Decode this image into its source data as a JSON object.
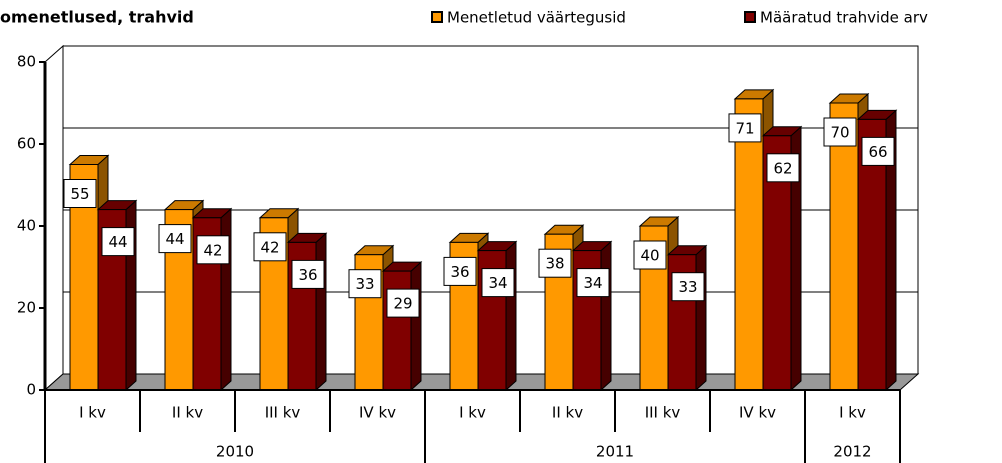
{
  "chart_data": {
    "type": "bar3d",
    "title": "omenetlused, trahvid",
    "groups": [
      {
        "label": "2010",
        "categories": [
          "I kv",
          "II kv",
          "III kv",
          "IV kv"
        ]
      },
      {
        "label": "2011",
        "categories": [
          "I kv",
          "II kv",
          "III kv",
          "IV kv"
        ]
      },
      {
        "label": "2012",
        "categories": [
          "I kv"
        ]
      }
    ],
    "series": [
      {
        "name": "Menetletud väärtegusid",
        "color": "#ff9900",
        "values": [
          55,
          44,
          42,
          33,
          36,
          38,
          40,
          71,
          70
        ]
      },
      {
        "name": "Määratud trahvide arv",
        "color": "#800000",
        "values": [
          44,
          42,
          36,
          29,
          34,
          34,
          33,
          62,
          66
        ]
      }
    ],
    "ylim": [
      0,
      80
    ],
    "yticks": [
      0,
      20,
      40,
      60,
      80
    ],
    "grid": true,
    "legend": "top-right"
  }
}
